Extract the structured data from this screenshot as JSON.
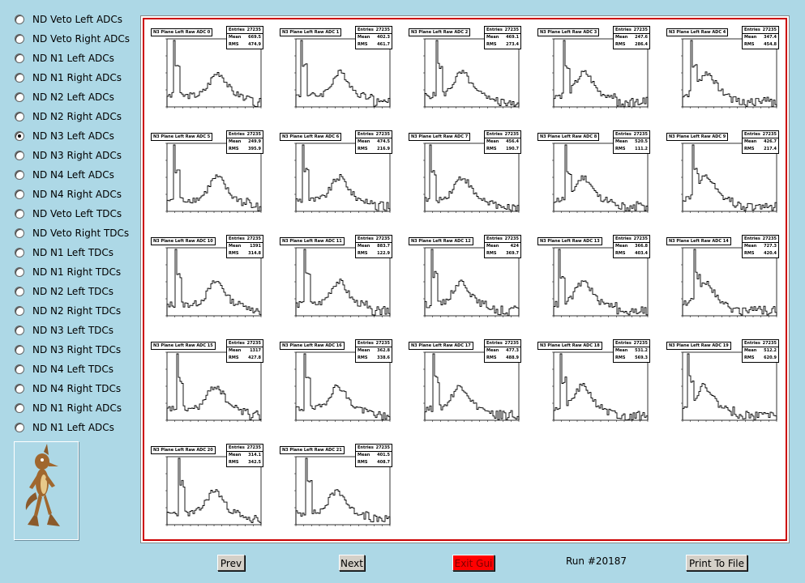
{
  "radio_options": [
    {
      "label": "ND Veto Left ADCs",
      "checked": false
    },
    {
      "label": "ND Veto Right ADCs",
      "checked": false
    },
    {
      "label": "ND N1 Left ADCs",
      "checked": false
    },
    {
      "label": "ND N1 Right ADCs",
      "checked": false
    },
    {
      "label": "ND N2 Left ADCs",
      "checked": false
    },
    {
      "label": "ND N2 Right ADCs",
      "checked": false
    },
    {
      "label": "ND N3 Left ADCs",
      "checked": true
    },
    {
      "label": "ND N3 Right ADCs",
      "checked": false
    },
    {
      "label": "ND N4 Left ADCs",
      "checked": false
    },
    {
      "label": "ND N4 Right ADCs",
      "checked": false
    },
    {
      "label": "ND Veto Left TDCs",
      "checked": false
    },
    {
      "label": "ND Veto Right TDCs",
      "checked": false
    },
    {
      "label": "ND N1 Left TDCs",
      "checked": false
    },
    {
      "label": "ND N1 Right TDCs",
      "checked": false
    },
    {
      "label": "ND N2 Left TDCs",
      "checked": false
    },
    {
      "label": "ND N2 Right TDCs",
      "checked": false
    },
    {
      "label": "ND N3 Left TDCs",
      "checked": false
    },
    {
      "label": "ND N3 Right TDCs",
      "checked": false
    },
    {
      "label": "ND N4 Left TDCs",
      "checked": false
    },
    {
      "label": "ND N4 Right TDCs",
      "checked": false
    },
    {
      "label": "ND N1 Right ADCs",
      "checked": false
    },
    {
      "label": "ND N1 Left ADCs",
      "checked": false
    }
  ],
  "mascot": {
    "icon": "coyote-mascot-icon"
  },
  "stat_labels": {
    "entries": "Entries",
    "mean": "Mean",
    "rms": "RMS"
  },
  "histograms": [
    {
      "title": "N3 Plane Left Raw ADC 0",
      "entries": "27235",
      "mean": "669.5",
      "rms": "474.9"
    },
    {
      "title": "N3 Plane Left Raw ADC 1",
      "entries": "27235",
      "mean": "402.3",
      "rms": "461.7"
    },
    {
      "title": "N3 Plane Left Raw ADC 2",
      "entries": "27235",
      "mean": "469.1",
      "rms": "273.4"
    },
    {
      "title": "N3 Plane Left Raw ADC 3",
      "entries": "27235",
      "mean": "247.6",
      "rms": "286.4"
    },
    {
      "title": "N3 Plane Left Raw ADC 4",
      "entries": "27235",
      "mean": "347.4",
      "rms": "454.8"
    },
    {
      "title": "N3 Plane Left Raw ADC 5",
      "entries": "27235",
      "mean": "249.9",
      "rms": "395.9"
    },
    {
      "title": "N3 Plane Left Raw ADC 6",
      "entries": "27235",
      "mean": "474.5",
      "rms": "216.9"
    },
    {
      "title": "N3 Plane Left Raw ADC 7",
      "entries": "27235",
      "mean": "456.4",
      "rms": "190.7"
    },
    {
      "title": "N3 Plane Left Raw ADC 8",
      "entries": "27235",
      "mean": "520.5",
      "rms": "111.2"
    },
    {
      "title": "N3 Plane Left Raw ADC 9",
      "entries": "27235",
      "mean": "426.7",
      "rms": "217.4"
    },
    {
      "title": "N3 Plane Left Raw ADC 10",
      "entries": "27235",
      "mean": "1391",
      "rms": "314.8"
    },
    {
      "title": "N3 Plane Left Raw ADC 11",
      "entries": "27235",
      "mean": "883.7",
      "rms": "122.9"
    },
    {
      "title": "N3 Plane Left Raw ADC 12",
      "entries": "27235",
      "mean": "424",
      "rms": "369.7"
    },
    {
      "title": "N3 Plane Left Raw ADC 13",
      "entries": "27235",
      "mean": "366.8",
      "rms": "403.4"
    },
    {
      "title": "N3 Plane Left Raw ADC 14",
      "entries": "27235",
      "mean": "727.3",
      "rms": "420.4"
    },
    {
      "title": "N3 Plane Left Raw ADC 15",
      "entries": "27235",
      "mean": "1317",
      "rms": "427.8"
    },
    {
      "title": "N3 Plane Left Raw ADC 16",
      "entries": "27235",
      "mean": "362.8",
      "rms": "338.6"
    },
    {
      "title": "N3 Plane Left Raw ADC 17",
      "entries": "27235",
      "mean": "477.3",
      "rms": "488.9"
    },
    {
      "title": "N3 Plane Left Raw ADC 18",
      "entries": "27235",
      "mean": "531.2",
      "rms": "569.3"
    },
    {
      "title": "N3 Plane Left Raw ADC 19",
      "entries": "27235",
      "mean": "512.2",
      "rms": "620.9"
    },
    {
      "title": "N3 Plane Left Raw ADC 20",
      "entries": "27235",
      "mean": "314.1",
      "rms": "342.5"
    },
    {
      "title": "N3 Plane Left Raw ADC 21",
      "entries": "27235",
      "mean": "401.5",
      "rms": "408.7"
    }
  ],
  "buttons": {
    "prev": "Prev",
    "next": "Next",
    "exit": "Exit Gui",
    "print": "Print To File"
  },
  "run_label": "Run #20187",
  "colors": {
    "background": "#add8e6",
    "frame_border": "#cc0000",
    "exit_button": "#ff0000"
  }
}
